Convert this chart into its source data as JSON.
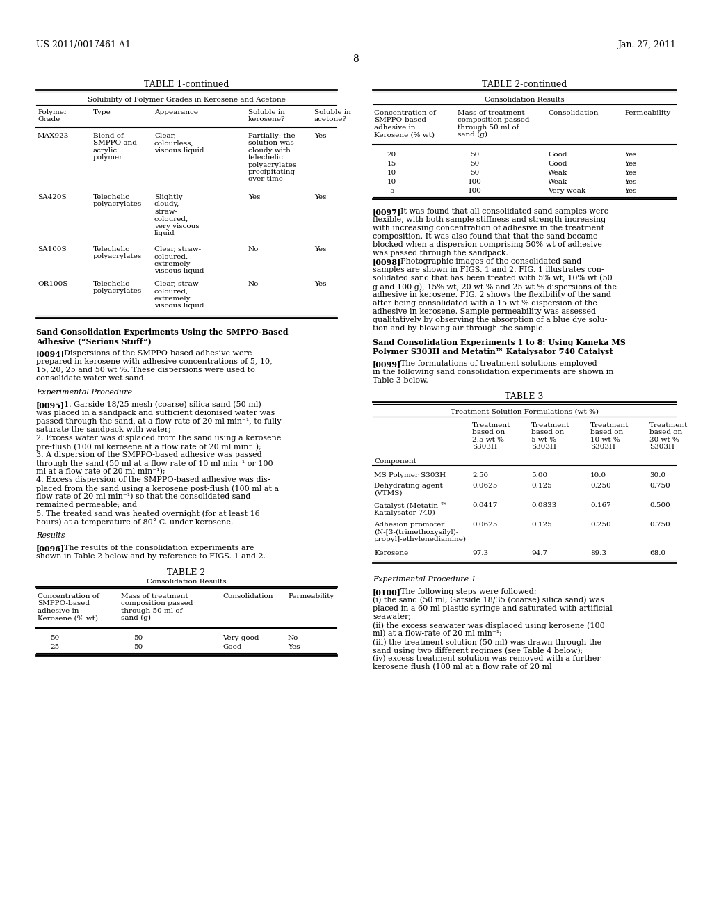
{
  "background_color": "#ffffff",
  "header_left": "US 2011/0017461 A1",
  "header_right": "Jan. 27, 2011",
  "page_number": "8"
}
